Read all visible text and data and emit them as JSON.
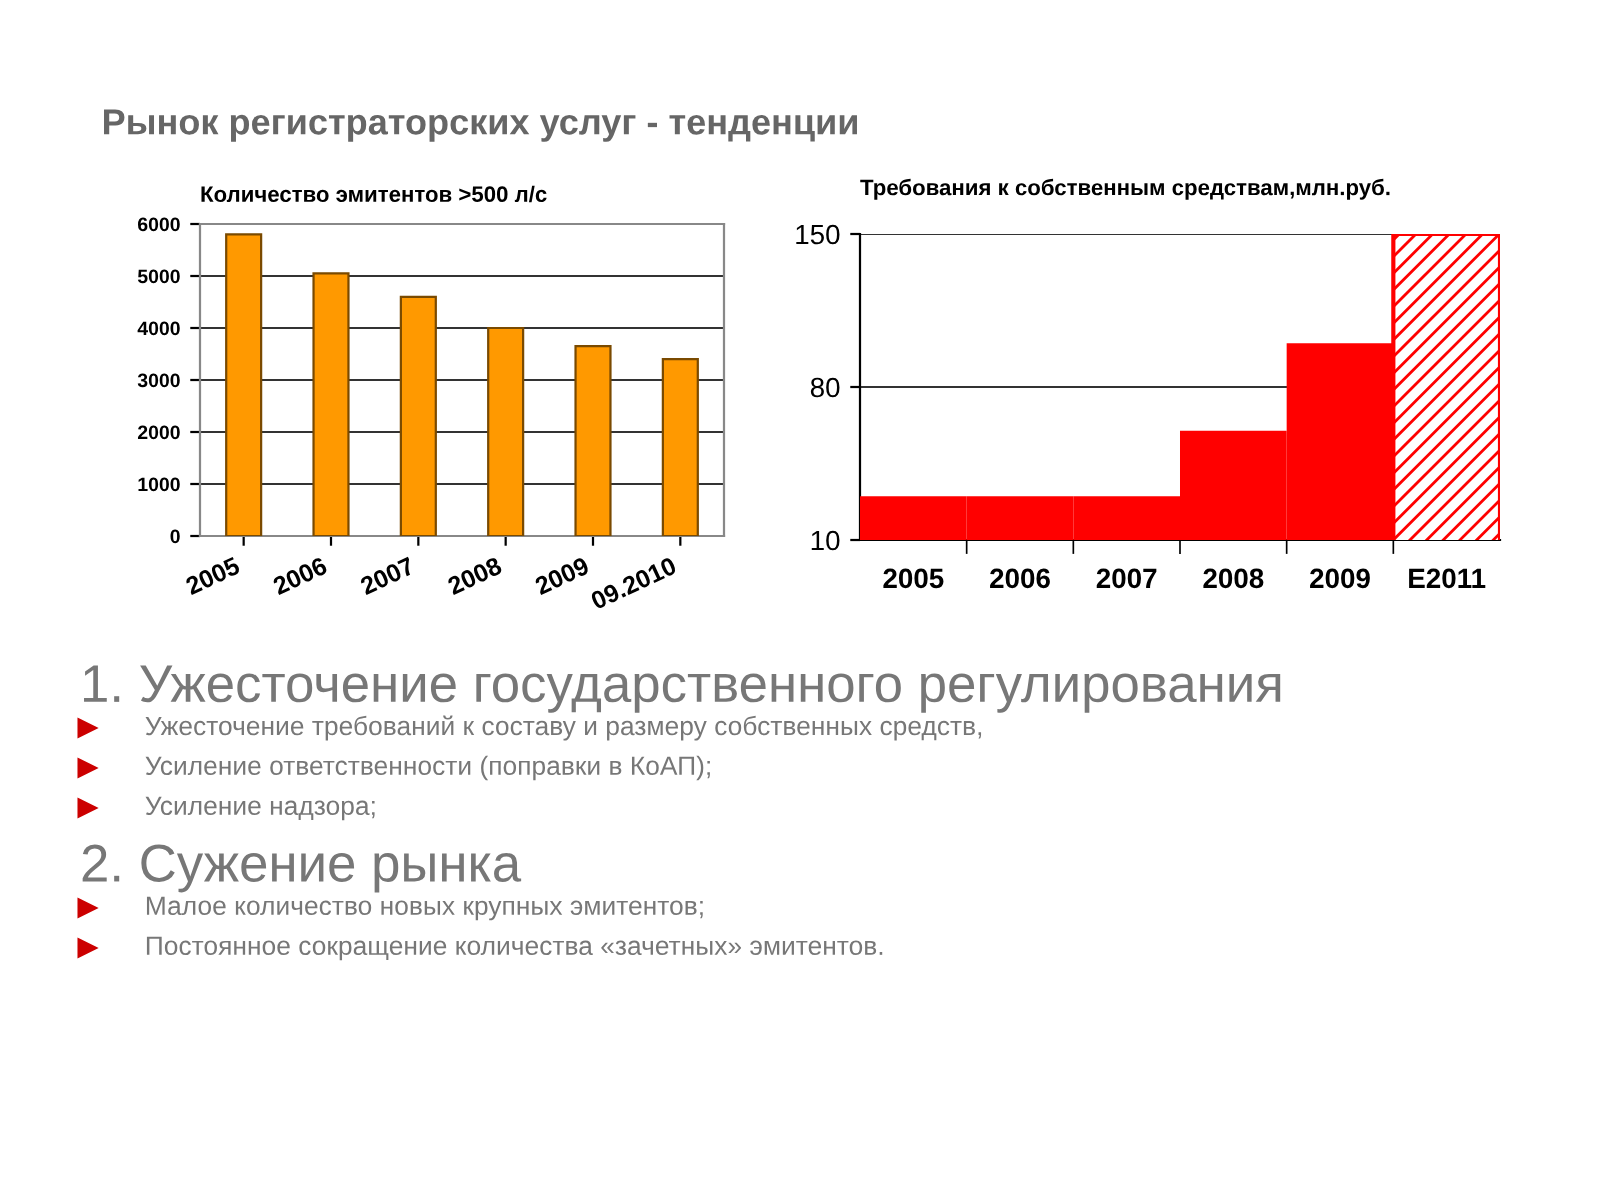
{
  "chart_data": [
    {
      "type": "other",
      "title": "Рынок регистраторских услуг - тенденции"
    },
    {
      "type": "bar",
      "title": "Количество эмитентов >500 л/с",
      "categories": [
        "2005",
        "2006",
        "2007",
        "2008",
        "2009",
        "09.2010"
      ],
      "values": [
        5800,
        5050,
        4600,
        4000,
        3650,
        3400
      ],
      "color": "#ff9900",
      "ylim": [
        0,
        6000
      ],
      "yticks": [
        0,
        1000,
        2000,
        3000,
        4000,
        5000,
        6000
      ],
      "grid": "y"
    },
    {
      "type": "bar",
      "title": "Требования к собственным средствам,млн.руб.",
      "categories": [
        "2005",
        "2006",
        "2007",
        "2008",
        "2009",
        "E2011"
      ],
      "series": [
        {
          "color": "#ff0000",
          "values": [
            30,
            30,
            30,
            60,
            100,
            null
          ]
        },
        {
          "color": "#ff0000",
          "values": [
            null,
            null,
            null,
            null,
            null,
            150
          ]
        }
      ],
      "ylim": [
        10,
        150
      ],
      "yticks": [
        10,
        80,
        150
      ],
      "grid": "y"
    },
    {
      "type": "other",
      "title": "1. Ужесточение государственного регулирования",
      "annotations": [
        "Ужесточение требований к составу и размеру собственных средств,",
        "Усиление ответственности (поправки в КоАП);",
        "Усиление надзора;"
      ]
    },
    {
      "type": "other",
      "title": "2. Сужение рынка",
      "annotations": [
        "Малое количество новых крупных эмитентов;",
        "Постоянное сокращение количества «зачетных» эмитентов."
      ]
    }
  ]
}
